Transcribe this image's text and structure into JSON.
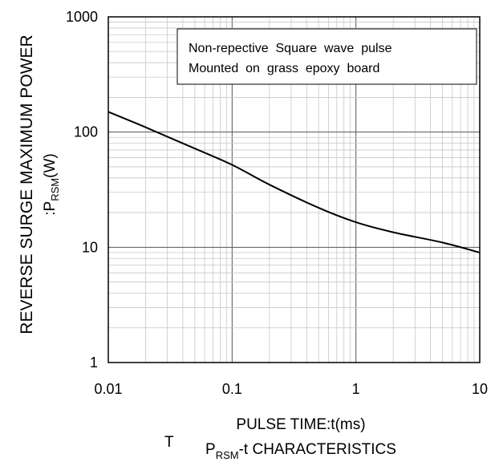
{
  "chart_data": {
    "type": "line",
    "title": "P_RSM-t CHARACTERISTICS",
    "title_main": "P",
    "title_sub": "RSM",
    "title_tail": "-t CHARACTERISTICS",
    "xlabel": "PULSE TIME:t(ms)",
    "ylabel": "REVERSE SURGE MAXIMUM POWER",
    "ylabel_line2_prefix": ":P",
    "ylabel_line2_sub": "RSM",
    "ylabel_line2_suffix": "(W)",
    "x_scale": "log",
    "y_scale": "log",
    "xlim": [
      0.01,
      10
    ],
    "ylim": [
      1,
      1000
    ],
    "x_ticks": [
      0.01,
      0.1,
      1,
      10
    ],
    "x_tick_labels": [
      "0.01",
      "0.1",
      "1",
      "10"
    ],
    "y_ticks": [
      1,
      10,
      100,
      1000
    ],
    "y_tick_labels": [
      "1",
      "10",
      "100",
      "1000"
    ],
    "grid": true,
    "annotation": [
      "Non-repective  Square  wave  pulse",
      "Mounted  on  grass  epoxy  board"
    ],
    "annotation_placement": "top-right",
    "series": [
      {
        "x": [
          0.01,
          0.02,
          0.05,
          0.1,
          0.2,
          0.5,
          1,
          2,
          5,
          10
        ],
        "y": [
          150,
          110,
          72,
          52,
          35,
          22,
          16.5,
          13.5,
          11,
          9
        ]
      }
    ]
  },
  "stray_text": "T",
  "colors": {
    "axis": "#000000",
    "major_grid": "#555555",
    "minor_grid": "#c8c8c8",
    "curve": "#000000"
  }
}
